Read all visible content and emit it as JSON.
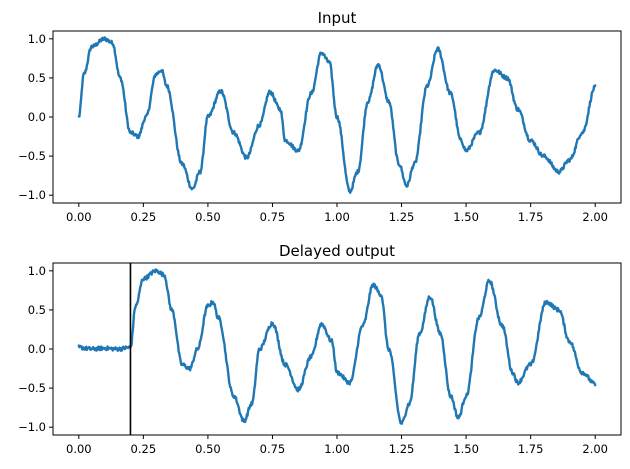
{
  "colors": {
    "series": "#1f77b4",
    "axes": "#000000",
    "marker": "#000000",
    "background": "#ffffff"
  },
  "chart_data": [
    {
      "type": "line",
      "title": "Input",
      "xlabel": "",
      "ylabel": "",
      "xlim": [
        -0.1,
        2.1
      ],
      "ylim": [
        -1.1,
        1.1
      ],
      "xticks": [
        0.0,
        0.25,
        0.5,
        0.75,
        1.0,
        1.25,
        1.5,
        1.75,
        2.0
      ],
      "xtick_labels": [
        "0.00",
        "0.25",
        "0.50",
        "0.75",
        "1.00",
        "1.25",
        "1.50",
        "1.75",
        "2.00"
      ],
      "yticks": [
        -1.0,
        -0.5,
        0.0,
        0.5,
        1.0
      ],
      "ytick_labels": [
        "−1.0",
        "−0.5",
        "0.0",
        "0.5",
        "1.0"
      ],
      "grid": false,
      "noise": 0.025,
      "series": [
        {
          "x": [
            0.0,
            0.02,
            0.05,
            0.1,
            0.13,
            0.16,
            0.2,
            0.23,
            0.26,
            0.3,
            0.32,
            0.34,
            0.4,
            0.44,
            0.47,
            0.5,
            0.55,
            0.6,
            0.65,
            0.7,
            0.74,
            0.78,
            0.8,
            0.85,
            0.9,
            0.94,
            0.97,
            1.0,
            1.05,
            1.08,
            1.12,
            1.16,
            1.2,
            1.24,
            1.27,
            1.3,
            1.35,
            1.39,
            1.44,
            1.48,
            1.5,
            1.55,
            1.61,
            1.66,
            1.7,
            1.75,
            1.8,
            1.86,
            1.9,
            1.95,
            2.0
          ],
          "y": [
            0.0,
            0.55,
            0.9,
            1.0,
            0.95,
            0.5,
            -0.2,
            -0.25,
            0.0,
            0.55,
            0.6,
            0.4,
            -0.6,
            -0.92,
            -0.7,
            0.0,
            0.33,
            -0.2,
            -0.52,
            -0.1,
            0.32,
            0.1,
            -0.3,
            -0.43,
            0.3,
            0.82,
            0.7,
            0.0,
            -0.95,
            -0.7,
            0.2,
            0.67,
            0.2,
            -0.6,
            -0.88,
            -0.6,
            0.4,
            0.87,
            0.3,
            -0.3,
            -0.43,
            -0.2,
            0.6,
            0.5,
            0.1,
            -0.3,
            -0.5,
            -0.7,
            -0.55,
            -0.2,
            0.38
          ]
        }
      ]
    },
    {
      "type": "line",
      "title": "Delayed output",
      "xlabel": "",
      "ylabel": "",
      "xlim": [
        -0.1,
        2.1
      ],
      "ylim": [
        -1.1,
        1.1
      ],
      "xticks": [
        0.0,
        0.25,
        0.5,
        0.75,
        1.0,
        1.25,
        1.5,
        1.75,
        2.0
      ],
      "xtick_labels": [
        "0.00",
        "0.25",
        "0.50",
        "0.75",
        "1.00",
        "1.25",
        "1.50",
        "1.75",
        "2.00"
      ],
      "yticks": [
        -1.0,
        -0.5,
        0.0,
        0.5,
        1.0
      ],
      "ytick_labels": [
        "−1.0",
        "−0.5",
        "0.0",
        "0.5",
        "1.0"
      ],
      "grid": false,
      "noise": 0.025,
      "vertical_line_x": 0.2,
      "series": [
        {
          "x": [
            0.0,
            0.05,
            0.1,
            0.15,
            0.2,
            0.22,
            0.25,
            0.3,
            0.33,
            0.36,
            0.4,
            0.43,
            0.46,
            0.5,
            0.52,
            0.54,
            0.6,
            0.64,
            0.67,
            0.7,
            0.75,
            0.8,
            0.85,
            0.9,
            0.94,
            0.98,
            1.0,
            1.05,
            1.1,
            1.14,
            1.17,
            1.2,
            1.25,
            1.28,
            1.32,
            1.36,
            1.4,
            1.44,
            1.47,
            1.5,
            1.55,
            1.59,
            1.64,
            1.68,
            1.7,
            1.75,
            1.81,
            1.86,
            1.9,
            1.95,
            2.0
          ],
          "y": [
            0.02,
            0.0,
            0.01,
            0.0,
            0.02,
            0.55,
            0.9,
            1.0,
            0.95,
            0.5,
            -0.2,
            -0.25,
            0.0,
            0.55,
            0.6,
            0.4,
            -0.6,
            -0.92,
            -0.7,
            0.0,
            0.33,
            -0.2,
            -0.52,
            -0.1,
            0.32,
            0.1,
            -0.3,
            -0.43,
            0.3,
            0.82,
            0.7,
            0.0,
            -0.95,
            -0.7,
            0.2,
            0.67,
            0.2,
            -0.6,
            -0.88,
            -0.6,
            0.4,
            0.87,
            0.3,
            -0.3,
            -0.43,
            -0.2,
            0.6,
            0.5,
            0.1,
            -0.3,
            -0.45
          ]
        }
      ]
    }
  ]
}
